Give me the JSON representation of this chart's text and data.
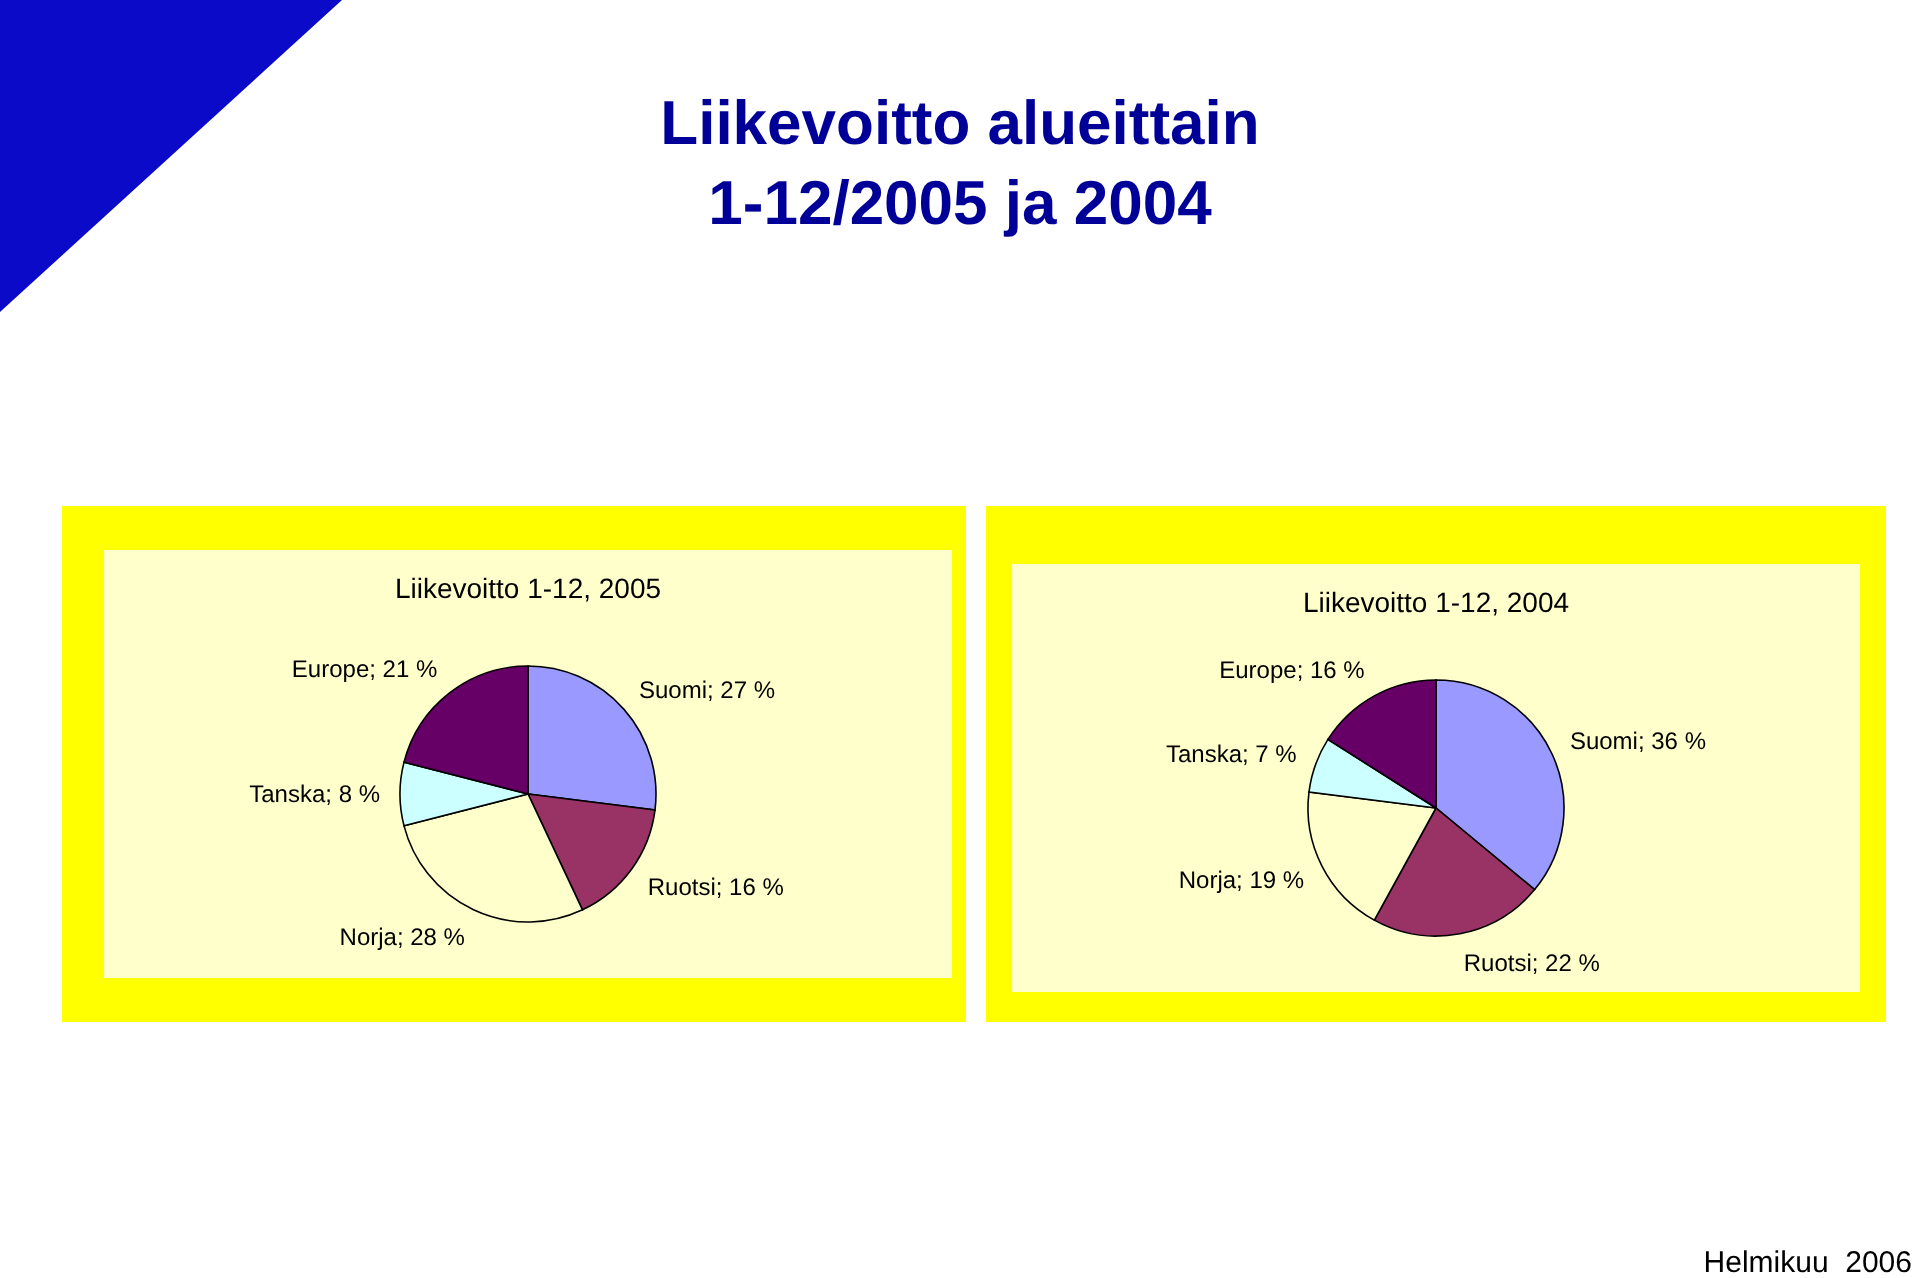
{
  "chart_data": [
    {
      "type": "pie",
      "title": "Liikevoitto 1-12, 2005",
      "categories": [
        "Suomi",
        "Ruotsi",
        "Norja",
        "Tanska",
        "Europe"
      ],
      "values": [
        27,
        16,
        28,
        8,
        21
      ],
      "colors": [
        "#9999ff",
        "#993366",
        "#ffffcc",
        "#ccffff",
        "#660066"
      ],
      "value_labels": [
        "27 %",
        "16 %",
        "28 %",
        "8 %",
        "21 %"
      ],
      "annotations": [
        "Liikevoitto alueittain\n1-12/2005 ja 2004",
        "Helmikuu  2006"
      ]
    },
    {
      "type": "pie",
      "title": "Liikevoitto 1-12, 2004",
      "categories": [
        "Suomi",
        "Ruotsi",
        "Norja",
        "Tanska",
        "Europe"
      ],
      "values": [
        36,
        22,
        19,
        7,
        16
      ],
      "colors": [
        "#9999ff",
        "#993366",
        "#ffffcc",
        "#ccffff",
        "#660066"
      ],
      "value_labels": [
        "36 %",
        "22 %",
        "19 %",
        "7 %",
        "16 %"
      ]
    }
  ]
}
